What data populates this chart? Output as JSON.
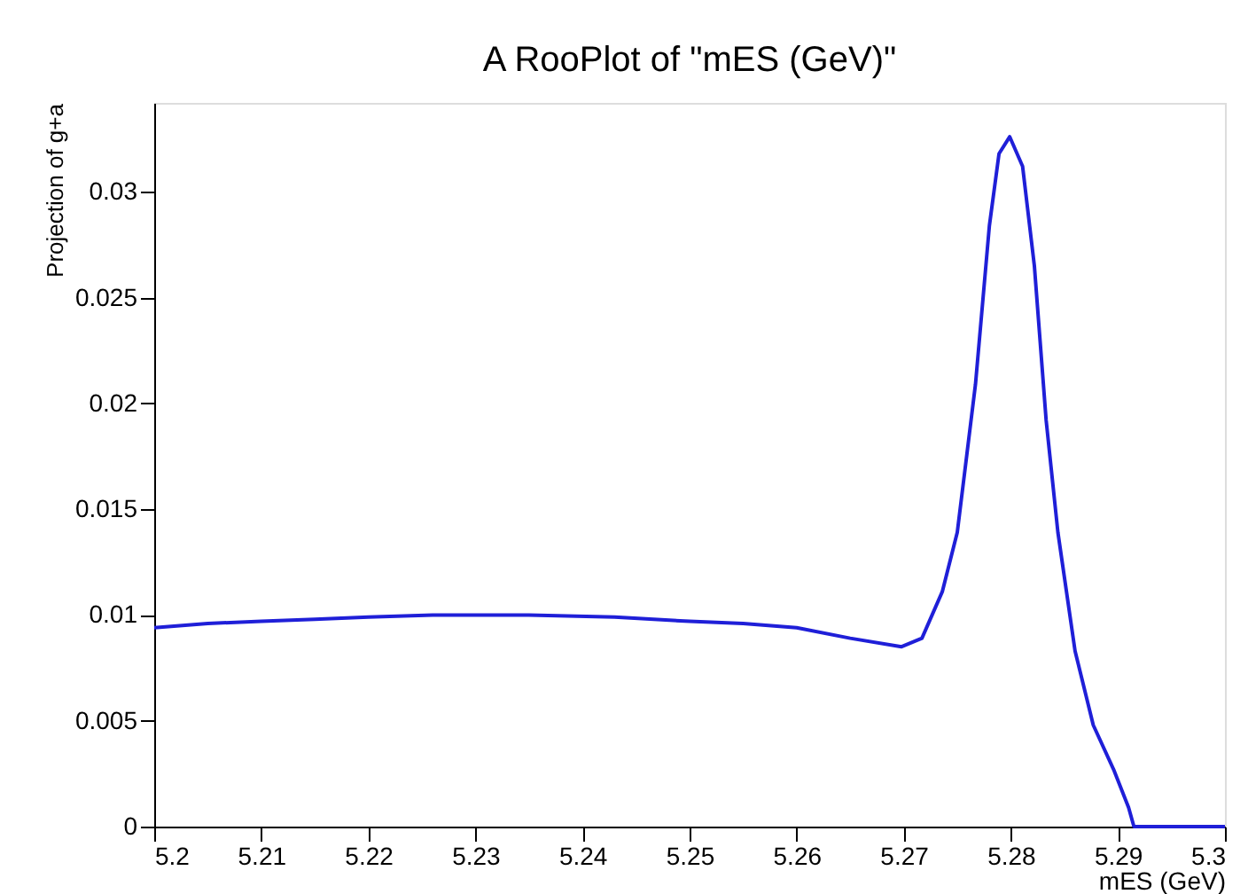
{
  "chart_data": {
    "type": "line",
    "title": "A RooPlot of \"mES (GeV)\"",
    "xlabel": "mES (GeV)",
    "ylabel": "Projection of g+a",
    "x": [
      5.2,
      5.205,
      5.21,
      5.215,
      5.22,
      5.226,
      5.235,
      5.243,
      5.25,
      5.255,
      5.26,
      5.265,
      5.2698,
      5.2717,
      5.2736,
      5.275,
      5.2767,
      5.278,
      5.2789,
      5.2799,
      5.2811,
      5.2822,
      5.2833,
      5.2844,
      5.286,
      5.2877,
      5.2896,
      5.291,
      5.2915,
      5.3
    ],
    "series": [
      {
        "color": "#1f1fd8",
        "values": [
          0.0094,
          0.0096,
          0.0097,
          0.0098,
          0.0099,
          0.01,
          0.01,
          0.0099,
          0.0097,
          0.0096,
          0.0094,
          0.0089,
          0.0085,
          0.0089,
          0.0111,
          0.0139,
          0.0209,
          0.0284,
          0.0318,
          0.0326,
          0.0312,
          0.0265,
          0.0192,
          0.0139,
          0.0083,
          0.0048,
          0.0027,
          0.0009,
          0,
          0
        ]
      }
    ],
    "xlim": [
      5.2,
      5.3
    ],
    "xticks": [
      5.2,
      5.21,
      5.22,
      5.23,
      5.24,
      5.25,
      5.26,
      5.27,
      5.28,
      5.29,
      5.3
    ],
    "ylim": [
      0,
      0.0342
    ],
    "yticks": [
      0,
      0.005,
      0.01,
      0.015,
      0.02,
      0.025,
      0.03
    ],
    "grid": false,
    "marker": "none",
    "line_style": "solid"
  }
}
